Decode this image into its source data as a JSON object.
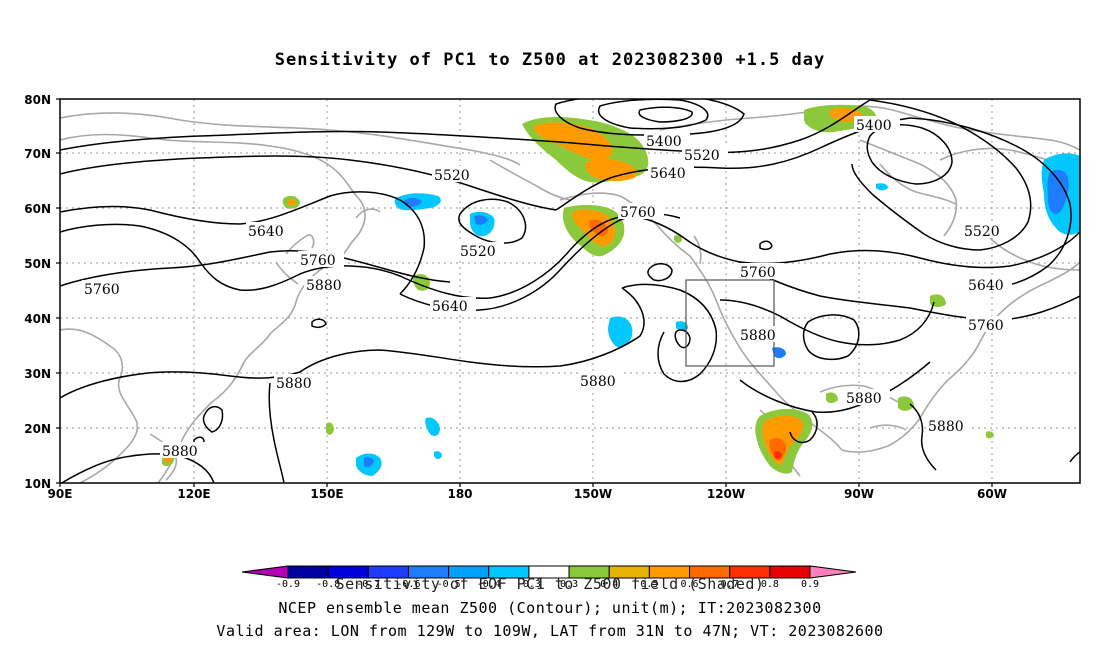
{
  "title": "Sensitivity of PC1 to Z500 at 2023082300 +1.5 day",
  "map": {
    "lat_labels": [
      "80N",
      "70N",
      "60N",
      "50N",
      "40N",
      "30N",
      "20N",
      "10N"
    ],
    "lon_labels": [
      "90E",
      "120E",
      "150E",
      "180",
      "150W",
      "120W",
      "90W",
      "60W"
    ],
    "contour_labels": [
      "5400",
      "5400",
      "5520",
      "5520",
      "5520",
      "5520",
      "5640",
      "5640",
      "5640",
      "5640",
      "5760",
      "5760",
      "5760",
      "5760",
      "5760",
      "5880",
      "5880",
      "5880",
      "5880",
      "5880",
      "5880"
    ],
    "valid_box": "129W-109W, 31N-47N",
    "colors": {
      "contour": "#000000",
      "coastline": "#a0a0a0",
      "grid": "#9a9a9a",
      "light_blue": "#00c8ff",
      "blue": "#1e7dff",
      "green": "#8cc83c",
      "orange": "#ff9b00",
      "dark_orange": "#ff6a00",
      "red": "#ff3000"
    }
  },
  "colorbar": {
    "ticks": [
      "-0.9",
      "-0.8",
      "-0.7",
      "-0.6",
      "-0.5",
      "-0.4",
      "-0.3",
      "0.3",
      "0.4",
      "0.5",
      "0.6",
      "0.7",
      "0.8",
      "0.9"
    ],
    "colors": [
      "#b400b4",
      "#0000a0",
      "#0000dc",
      "#1e3cff",
      "#1e7dff",
      "#00a0ff",
      "#00c8ff",
      "#ffffff",
      "#8cc83c",
      "#e6b400",
      "#ff9b00",
      "#ff6a00",
      "#ff3000",
      "#e60000",
      "#ff7fbf"
    ]
  },
  "legend_caption": "Sensitivity of EOF PC1 to Z500 field (Shaded)",
  "footer": {
    "line1": "NCEP ensemble mean Z500 (Contour); unit(m); IT:2023082300",
    "line2": "Valid area: LON from 129W to 109W, LAT from 31N to 47N; VT: 2023082600"
  }
}
